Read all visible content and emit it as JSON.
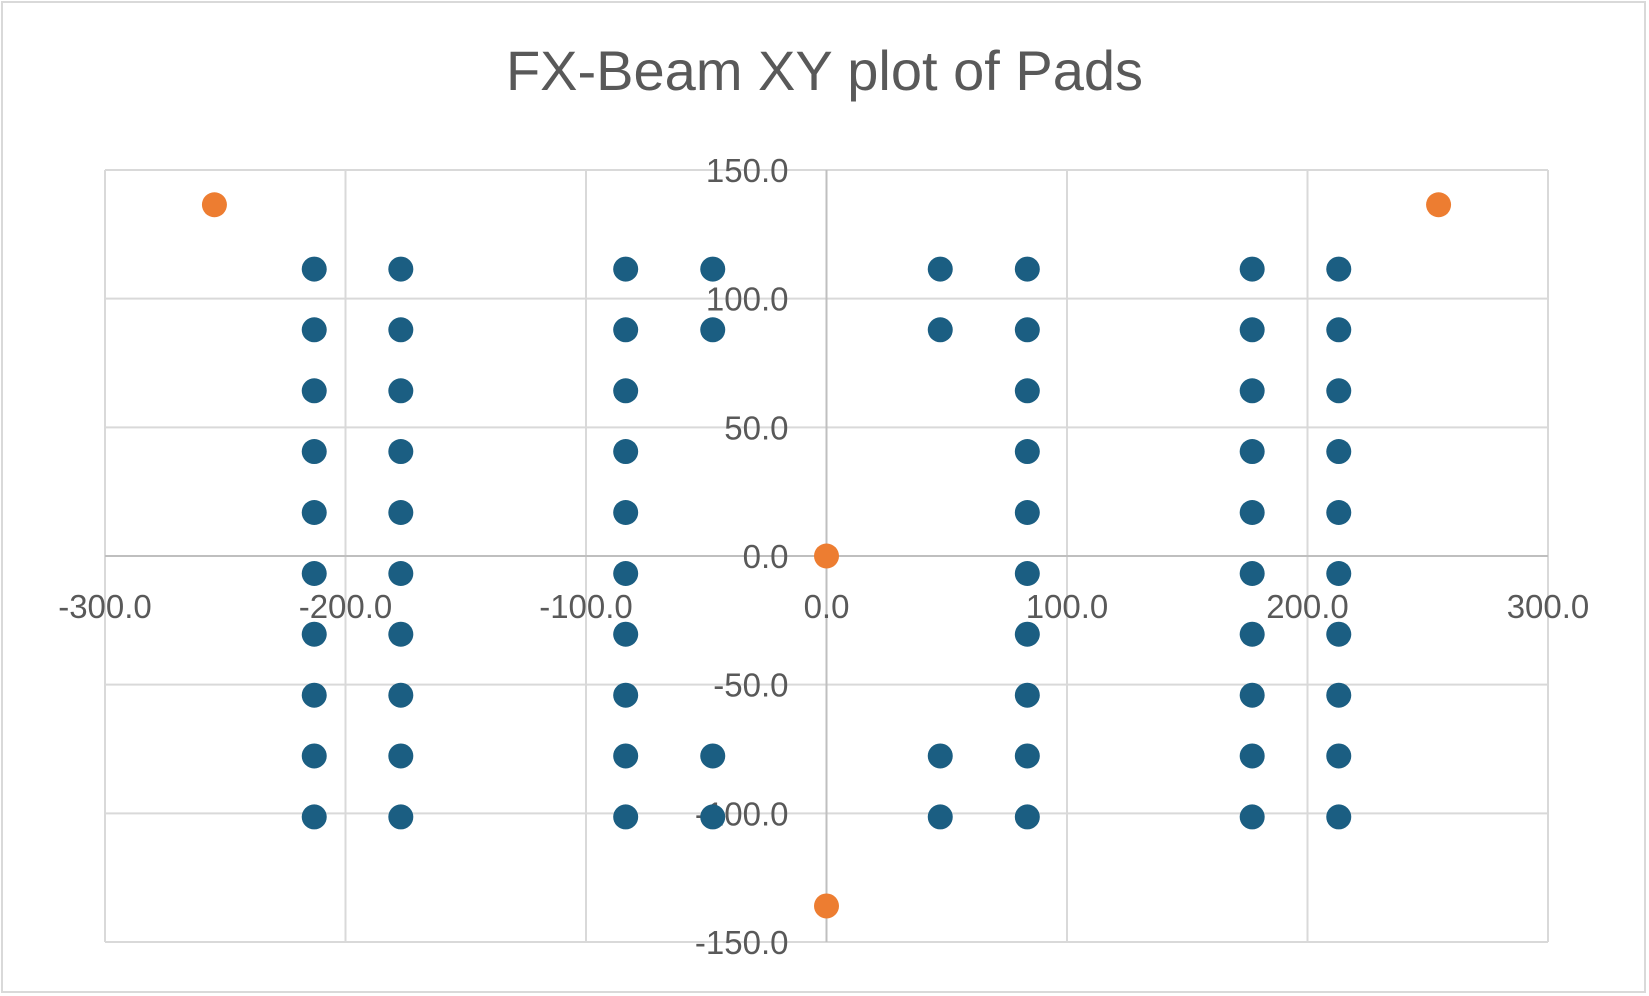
{
  "chart_data": {
    "type": "scatter",
    "title": "FX-Beam XY plot of Pads",
    "xlabel": "",
    "ylabel": "",
    "xlim": [
      -300,
      300
    ],
    "ylim": [
      -150,
      150
    ],
    "x_ticks": [
      "-300.0",
      "-200.0",
      "-100.0",
      "0.0",
      "100.0",
      "200.0",
      "300.0"
    ],
    "y_ticks": [
      "150.0",
      "100.0",
      "50.0",
      "0.0",
      "-50.0",
      "-100.0",
      "-150.0"
    ],
    "grid": true,
    "legend": "none",
    "series": [
      {
        "color": "#1b5e82",
        "points": [
          [
            -213,
            111.5
          ],
          [
            -213,
            87.9
          ],
          [
            -213,
            64.2
          ],
          [
            -213,
            40.6
          ],
          [
            -213,
            16.9
          ],
          [
            -213,
            -6.8
          ],
          [
            -213,
            -30.4
          ],
          [
            -213,
            -54.1
          ],
          [
            -213,
            -77.7
          ],
          [
            -213,
            -101.4
          ],
          [
            -177,
            111.5
          ],
          [
            -177,
            87.9
          ],
          [
            -177,
            64.2
          ],
          [
            -177,
            40.6
          ],
          [
            -177,
            16.9
          ],
          [
            -177,
            -6.8
          ],
          [
            -177,
            -30.4
          ],
          [
            -177,
            -54.1
          ],
          [
            -177,
            -77.7
          ],
          [
            -177,
            -101.4
          ],
          [
            -83.5,
            111.5
          ],
          [
            -83.5,
            87.9
          ],
          [
            -83.5,
            64.2
          ],
          [
            -83.5,
            40.6
          ],
          [
            -83.5,
            16.9
          ],
          [
            -83.5,
            -6.8
          ],
          [
            -83.5,
            -30.4
          ],
          [
            -83.5,
            -54.1
          ],
          [
            -83.5,
            -77.7
          ],
          [
            -83.5,
            -101.4
          ],
          [
            -47.3,
            111.5
          ],
          [
            -47.3,
            87.9
          ],
          [
            -47.3,
            -77.7
          ],
          [
            -47.3,
            -101.4
          ],
          [
            47.3,
            111.5
          ],
          [
            47.3,
            87.9
          ],
          [
            47.3,
            -77.7
          ],
          [
            47.3,
            -101.4
          ],
          [
            83.5,
            111.5
          ],
          [
            83.5,
            87.9
          ],
          [
            83.5,
            64.2
          ],
          [
            83.5,
            40.6
          ],
          [
            83.5,
            16.9
          ],
          [
            83.5,
            -6.8
          ],
          [
            83.5,
            -30.4
          ],
          [
            83.5,
            -54.1
          ],
          [
            83.5,
            -77.7
          ],
          [
            83.5,
            -101.4
          ],
          [
            177,
            111.5
          ],
          [
            177,
            87.9
          ],
          [
            177,
            64.2
          ],
          [
            177,
            40.6
          ],
          [
            177,
            16.9
          ],
          [
            177,
            -6.8
          ],
          [
            177,
            -30.4
          ],
          [
            177,
            -54.1
          ],
          [
            177,
            -77.7
          ],
          [
            177,
            -101.4
          ],
          [
            213,
            111.5
          ],
          [
            213,
            87.9
          ],
          [
            213,
            64.2
          ],
          [
            213,
            40.6
          ],
          [
            213,
            16.9
          ],
          [
            213,
            -6.8
          ],
          [
            213,
            -30.4
          ],
          [
            213,
            -54.1
          ],
          [
            213,
            -77.7
          ],
          [
            213,
            -101.4
          ]
        ]
      },
      {
        "color": "#ed7d31",
        "points": [
          [
            -254.5,
            136.5
          ],
          [
            254.5,
            136.5
          ],
          [
            0,
            0
          ],
          [
            0,
            -136
          ]
        ]
      }
    ]
  }
}
